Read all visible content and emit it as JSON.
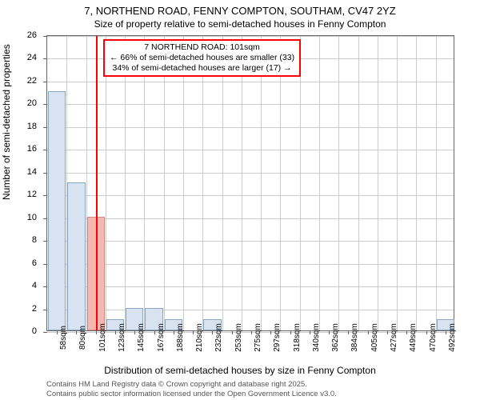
{
  "chart": {
    "type": "histogram",
    "title_main": "7, NORTHEND ROAD, FENNY COMPTON, SOUTHAM, CV47 2YZ",
    "title_sub": "Size of property relative to semi-detached houses in Fenny Compton",
    "ylabel": "Number of semi-detached properties",
    "xlabel": "Distribution of semi-detached houses by size in Fenny Compton",
    "y_axis": {
      "min": 0,
      "max": 26,
      "ticks": [
        0,
        2,
        4,
        6,
        8,
        10,
        12,
        14,
        16,
        18,
        20,
        22,
        24,
        26
      ]
    },
    "x_ticks": [
      "58sqm",
      "80sqm",
      "101sqm",
      "123sqm",
      "145sqm",
      "167sqm",
      "188sqm",
      "210sqm",
      "232sqm",
      "253sqm",
      "275sqm",
      "297sqm",
      "318sqm",
      "340sqm",
      "362sqm",
      "384sqm",
      "405sqm",
      "427sqm",
      "449sqm",
      "470sqm",
      "492sqm"
    ],
    "bars": [
      {
        "v": 21,
        "m": false
      },
      {
        "v": 13,
        "m": false
      },
      {
        "v": 10,
        "m": true
      },
      {
        "v": 1,
        "m": false
      },
      {
        "v": 2,
        "m": false
      },
      {
        "v": 2,
        "m": false
      },
      {
        "v": 1,
        "m": false
      },
      {
        "v": 0,
        "m": false
      },
      {
        "v": 1,
        "m": false
      },
      {
        "v": 0,
        "m": false
      },
      {
        "v": 0,
        "m": false
      },
      {
        "v": 0,
        "m": false
      },
      {
        "v": 0,
        "m": false
      },
      {
        "v": 0,
        "m": false
      },
      {
        "v": 0,
        "m": false
      },
      {
        "v": 0,
        "m": false
      },
      {
        "v": 0,
        "m": false
      },
      {
        "v": 0,
        "m": false
      },
      {
        "v": 0,
        "m": false
      },
      {
        "v": 0,
        "m": false
      },
      {
        "v": 1,
        "m": false
      }
    ],
    "marker_line_at_bar": 2,
    "annotation": {
      "line1": "7 NORTHEND ROAD: 101sqm",
      "line2": "← 66% of semi-detached houses are smaller (33)",
      "line3": "34% of semi-detached houses are larger (17) →"
    },
    "colors": {
      "bar_fill": "#d7e3f0",
      "bar_border": "#8aa6c2",
      "marker_fill": "#f5b7b1",
      "marker_border": "#d98880",
      "marker_line": "#ff0000",
      "grid": "#cccccc",
      "axis": "#666666",
      "attribution_text": "#555555"
    },
    "attribution": {
      "line1": "Contains HM Land Registry data © Crown copyright and database right 2025.",
      "line2": "Contains public sector information licensed under the Open Government Licence v3.0."
    }
  }
}
